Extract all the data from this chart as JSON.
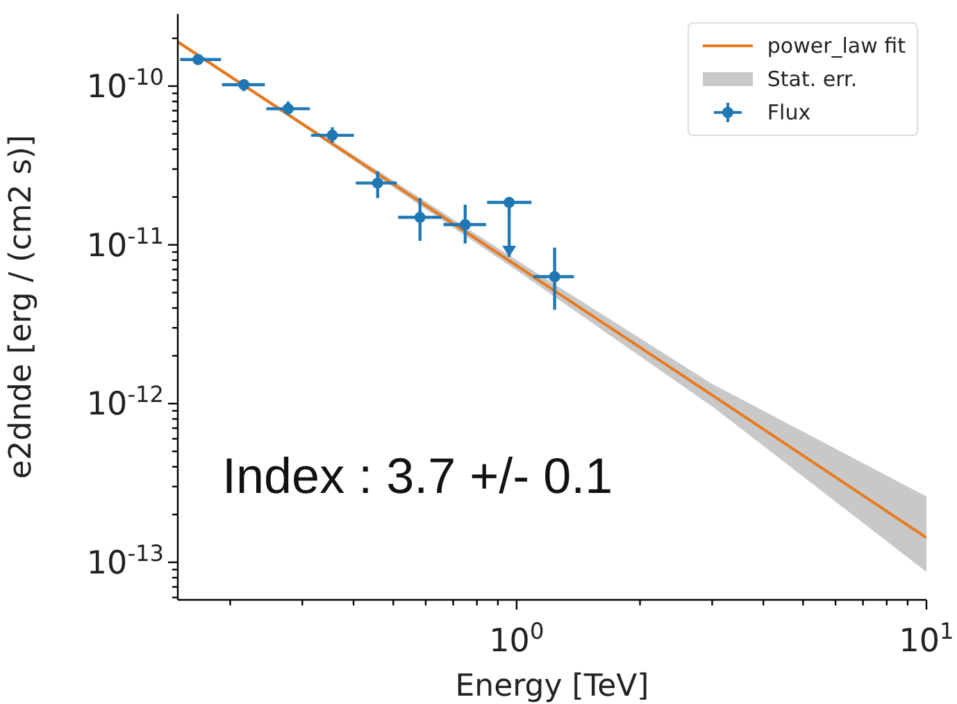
{
  "chart_data": {
    "type": "scatter",
    "xlabel": "Energy [TeV]",
    "ylabel": "e2dnde [erg / (cm2 s)]",
    "annotations": [
      "Index : 3.7 +/- 0.1"
    ],
    "log": "xy",
    "grid": false,
    "legend": "top right",
    "xlim": [
      0.149,
      10
    ],
    "ylim": [
      5.8e-14,
      2.85e-10
    ],
    "xticks": [
      {
        "value": 0.2,
        "label": null
      },
      {
        "value": 0.3,
        "label": null
      },
      {
        "value": 0.4,
        "label": null
      },
      {
        "value": 0.5,
        "label": null
      },
      {
        "value": 0.6,
        "label": null
      },
      {
        "value": 0.7,
        "label": null
      },
      {
        "value": 0.8,
        "label": null
      },
      {
        "value": 0.9,
        "label": null
      },
      {
        "value": 1,
        "label": "10$^{0}$"
      },
      {
        "value": 2,
        "label": null
      },
      {
        "value": 3,
        "label": null
      },
      {
        "value": 4,
        "label": null
      },
      {
        "value": 5,
        "label": null
      },
      {
        "value": 6,
        "label": null
      },
      {
        "value": 7,
        "label": null
      },
      {
        "value": 8,
        "label": null
      },
      {
        "value": 9,
        "label": null
      },
      {
        "value": 10,
        "label": "10$^{1}$"
      }
    ],
    "yticks": [
      {
        "value": 6e-14,
        "label": null
      },
      {
        "value": 7e-14,
        "label": null
      },
      {
        "value": 8e-14,
        "label": null
      },
      {
        "value": 9e-14,
        "label": null
      },
      {
        "value": 1e-13,
        "label": "10$^{-13}$"
      },
      {
        "value": 2e-13,
        "label": null
      },
      {
        "value": 3e-13,
        "label": null
      },
      {
        "value": 4e-13,
        "label": null
      },
      {
        "value": 5e-13,
        "label": null
      },
      {
        "value": 6e-13,
        "label": null
      },
      {
        "value": 7e-13,
        "label": null
      },
      {
        "value": 8e-13,
        "label": null
      },
      {
        "value": 9e-13,
        "label": null
      },
      {
        "value": 1e-12,
        "label": "10$^{-12}$"
      },
      {
        "value": 2e-12,
        "label": null
      },
      {
        "value": 3e-12,
        "label": null
      },
      {
        "value": 4e-12,
        "label": null
      },
      {
        "value": 5e-12,
        "label": null
      },
      {
        "value": 6e-12,
        "label": null
      },
      {
        "value": 7e-12,
        "label": null
      },
      {
        "value": 8e-12,
        "label": null
      },
      {
        "value": 9e-12,
        "label": null
      },
      {
        "value": 1e-11,
        "label": "10$^{-11}$"
      },
      {
        "value": 2e-11,
        "label": null
      },
      {
        "value": 3e-11,
        "label": null
      },
      {
        "value": 4e-11,
        "label": null
      },
      {
        "value": 5e-11,
        "label": null
      },
      {
        "value": 6e-11,
        "label": null
      },
      {
        "value": 7e-11,
        "label": null
      },
      {
        "value": 8e-11,
        "label": null
      },
      {
        "value": 9e-11,
        "label": null
      },
      {
        "value": 1e-10,
        "label": "10$^{-10}$"
      },
      {
        "value": 2e-10,
        "label": null
      }
    ],
    "series": [
      {
        "name": "power_law fit",
        "type": "line",
        "color": "#e8791c",
        "marker": "none",
        "line_style": "solid",
        "x": [
          0.149,
          0.3,
          1,
          3,
          10
        ],
        "values": [
          1.9e-10,
          5.77e-11,
          7.4e-12,
          1.13e-12,
          1.43e-13
        ],
        "lower": [
          1.85e-10,
          5.6e-11,
          6.9e-12,
          9.6e-13,
          8.7e-14
        ],
        "upper": [
          1.95e-10,
          5.95e-11,
          8e-12,
          1.33e-12,
          2.6e-13
        ]
      },
      {
        "name": "Stat. err.",
        "type": "area",
        "color": "#c8c8c8"
      },
      {
        "name": "Flux",
        "color": "#1f77b4",
        "marker": "circle",
        "x": [
          0.167,
          0.216,
          0.277,
          0.355,
          0.458,
          0.581,
          0.749,
          0.959,
          1.238
        ],
        "values": [
          1.47e-10,
          1.02e-10,
          7.2e-11,
          4.9e-11,
          2.45e-11,
          1.49e-11,
          1.34e-11,
          1.85e-11,
          6.3e-12
        ],
        "errors": [
          null,
          [
            9.3e-11,
            1.1e-10
          ],
          [
            6.6e-11,
            8e-11
          ],
          [
            4.4e-11,
            5.5e-11
          ],
          [
            1.97e-11,
            2.9e-11
          ],
          [
            1.06e-11,
            1.97e-11
          ],
          [
            1.02e-11,
            1.79e-11
          ],
          [
            8.4e-12,
            1.85e-11
          ],
          [
            3.9e-12,
            9.6e-12
          ]
        ],
        "xerrors": [
          [
            0.151,
            0.19
          ],
          [
            0.191,
            0.243
          ],
          [
            0.245,
            0.313
          ],
          [
            0.315,
            0.401
          ],
          [
            0.405,
            0.51
          ],
          [
            0.514,
            0.656
          ],
          [
            0.663,
            0.842
          ],
          [
            0.847,
            1.087
          ],
          [
            1.098,
            1.38
          ]
        ]
      }
    ]
  }
}
